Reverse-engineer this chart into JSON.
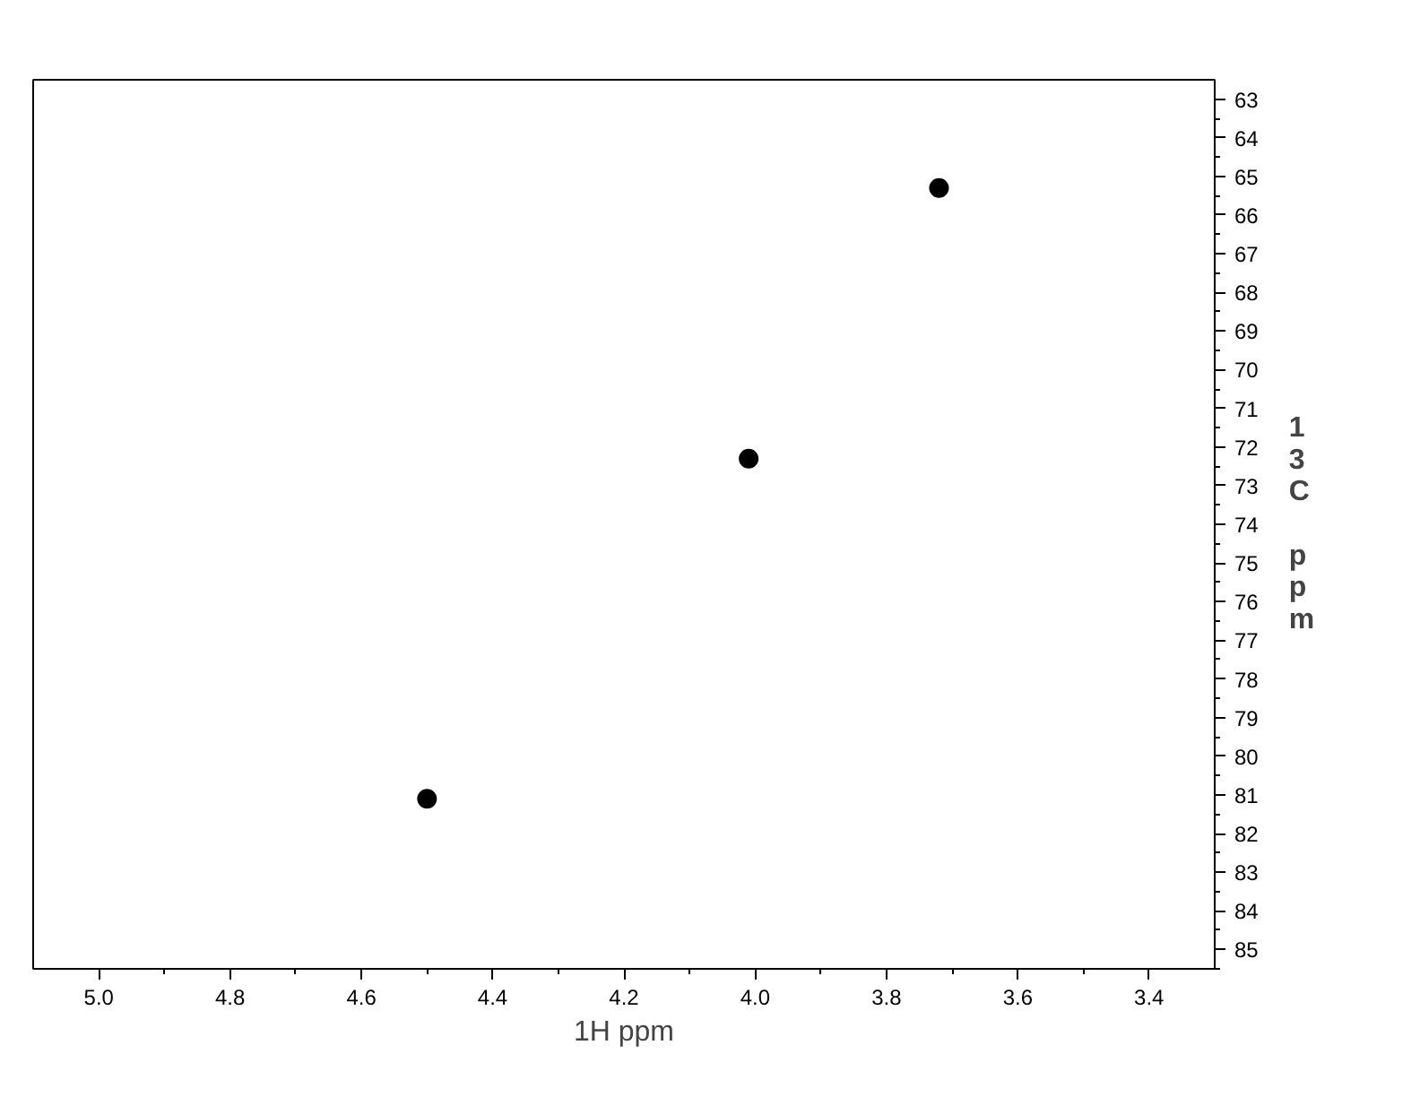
{
  "chart_data": {
    "type": "scatter",
    "xlabel": "1H ppm",
    "ylabel": "13C ppm",
    "marker": "circle",
    "grid": false,
    "x": [
      4.5,
      4.01,
      3.72
    ],
    "series": [
      {
        "color": "#000000",
        "values": [
          81.1,
          72.3,
          65.3
        ]
      }
    ],
    "xlim": [
      5.1,
      3.3
    ],
    "xticks": [
      {
        "value": 5.0,
        "label": "5.0"
      },
      {
        "value": 4.9,
        "label": null
      },
      4.8,
      {
        "value": 4.7,
        "label": null
      },
      4.6,
      {
        "value": 4.5,
        "label": null
      },
      4.4,
      {
        "value": 4.3,
        "label": null
      },
      4.2,
      {
        "value": 4.1,
        "label": null
      },
      {
        "value": 4.0,
        "label": "4.0"
      },
      {
        "value": 3.9,
        "label": null
      },
      3.8,
      {
        "value": 3.7,
        "label": null
      },
      3.6,
      {
        "value": 3.5,
        "label": null
      },
      3.4
    ],
    "ylim": [
      85.5,
      62.5
    ],
    "yticks": [
      63,
      64,
      65,
      66,
      67,
      68,
      69,
      70,
      71,
      72,
      73,
      74,
      75,
      76,
      77,
      78,
      79,
      80,
      81,
      82,
      83,
      84,
      85,
      {
        "value": 63.5,
        "label": null
      },
      {
        "value": 64.5,
        "label": null
      },
      {
        "value": 65.5,
        "label": null
      },
      {
        "value": 66.5,
        "label": null
      },
      {
        "value": 67.5,
        "label": null
      },
      {
        "value": 68.5,
        "label": null
      },
      {
        "value": 69.5,
        "label": null
      },
      {
        "value": 70.5,
        "label": null
      },
      {
        "value": 71.5,
        "label": null
      },
      {
        "value": 72.5,
        "label": null
      },
      {
        "value": 73.5,
        "label": null
      },
      {
        "value": 74.5,
        "label": null
      },
      {
        "value": 75.5,
        "label": null
      },
      {
        "value": 76.5,
        "label": null
      },
      {
        "value": 77.5,
        "label": null
      },
      {
        "value": 78.5,
        "label": null
      },
      {
        "value": 79.5,
        "label": null
      },
      {
        "value": 80.5,
        "label": null
      },
      {
        "value": 81.5,
        "label": null
      },
      {
        "value": 82.5,
        "label": null
      },
      {
        "value": 83.5,
        "label": null
      },
      {
        "value": 84.5,
        "label": null
      },
      {
        "value": 85.5,
        "label": null
      }
    ]
  }
}
